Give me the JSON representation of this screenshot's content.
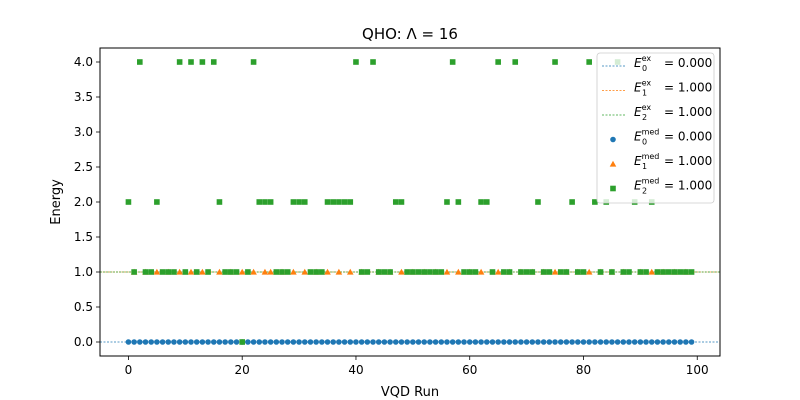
{
  "chart_data": {
    "type": "scatter",
    "title": "QHO: Λ = 16",
    "xlabel": "VQD Run",
    "ylabel": "Energy",
    "xlim": [
      -5,
      104
    ],
    "ylim": [
      -0.2,
      4.2
    ],
    "x_ticks": [
      0,
      20,
      40,
      60,
      80,
      100
    ],
    "y_ticks": [
      0.0,
      0.5,
      1.0,
      1.5,
      2.0,
      2.5,
      3.0,
      3.5,
      4.0
    ],
    "x_tick_labels": [
      "0",
      "20",
      "40",
      "60",
      "80",
      "100"
    ],
    "y_tick_labels": [
      "0.0",
      "0.5",
      "1.0",
      "1.5",
      "2.0",
      "2.5",
      "3.0",
      "3.5",
      "4.0"
    ],
    "legend_position": "upper-right",
    "reference_lines": [
      {
        "label_base": "E",
        "sub": "0",
        "sup": "ex",
        "value_text": "= 0.000",
        "y": 0.0,
        "color": "#1f77b4"
      },
      {
        "label_base": "E",
        "sub": "1",
        "sup": "ex",
        "value_text": "= 1.000",
        "y": 1.0,
        "color": "#ff7f0e"
      },
      {
        "label_base": "E",
        "sub": "2",
        "sup": "ex",
        "value_text": "= 1.000",
        "y": 1.0,
        "color": "#2ca02c"
      }
    ],
    "series": [
      {
        "label_base": "E",
        "sub": "0",
        "sup": "med",
        "value_text": "= 0.000",
        "marker": "circle",
        "color": "#1f77b4",
        "points": [
          [
            0,
            0
          ],
          [
            1,
            0
          ],
          [
            2,
            0
          ],
          [
            3,
            0
          ],
          [
            4,
            0
          ],
          [
            5,
            0
          ],
          [
            6,
            0
          ],
          [
            7,
            0
          ],
          [
            8,
            0
          ],
          [
            9,
            0
          ],
          [
            10,
            0
          ],
          [
            11,
            0
          ],
          [
            12,
            0
          ],
          [
            13,
            0
          ],
          [
            14,
            0
          ],
          [
            15,
            0
          ],
          [
            16,
            0
          ],
          [
            17,
            0
          ],
          [
            18,
            0
          ],
          [
            19,
            0
          ],
          [
            20,
            0
          ],
          [
            21,
            0
          ],
          [
            22,
            0
          ],
          [
            23,
            0
          ],
          [
            24,
            0
          ],
          [
            25,
            0
          ],
          [
            26,
            0
          ],
          [
            27,
            0
          ],
          [
            28,
            0
          ],
          [
            29,
            0
          ],
          [
            30,
            0
          ],
          [
            31,
            0
          ],
          [
            32,
            0
          ],
          [
            33,
            0
          ],
          [
            34,
            0
          ],
          [
            35,
            0
          ],
          [
            36,
            0
          ],
          [
            37,
            0
          ],
          [
            38,
            0
          ],
          [
            39,
            0
          ],
          [
            40,
            0
          ],
          [
            41,
            0
          ],
          [
            42,
            0
          ],
          [
            43,
            0
          ],
          [
            44,
            0
          ],
          [
            45,
            0
          ],
          [
            46,
            0
          ],
          [
            47,
            0
          ],
          [
            48,
            0
          ],
          [
            49,
            0
          ],
          [
            50,
            0
          ],
          [
            51,
            0
          ],
          [
            52,
            0
          ],
          [
            53,
            0
          ],
          [
            54,
            0
          ],
          [
            55,
            0
          ],
          [
            56,
            0
          ],
          [
            57,
            0
          ],
          [
            58,
            0
          ],
          [
            59,
            0
          ],
          [
            60,
            0
          ],
          [
            61,
            0
          ],
          [
            62,
            0
          ],
          [
            63,
            0
          ],
          [
            64,
            0
          ],
          [
            65,
            0
          ],
          [
            66,
            0
          ],
          [
            67,
            0
          ],
          [
            68,
            0
          ],
          [
            69,
            0
          ],
          [
            70,
            0
          ],
          [
            71,
            0
          ],
          [
            72,
            0
          ],
          [
            73,
            0
          ],
          [
            74,
            0
          ],
          [
            75,
            0
          ],
          [
            76,
            0
          ],
          [
            77,
            0
          ],
          [
            78,
            0
          ],
          [
            79,
            0
          ],
          [
            80,
            0
          ],
          [
            81,
            0
          ],
          [
            82,
            0
          ],
          [
            83,
            0
          ],
          [
            84,
            0
          ],
          [
            85,
            0
          ],
          [
            86,
            0
          ],
          [
            87,
            0
          ],
          [
            88,
            0
          ],
          [
            89,
            0
          ],
          [
            90,
            0
          ],
          [
            91,
            0
          ],
          [
            92,
            0
          ],
          [
            93,
            0
          ],
          [
            94,
            0
          ],
          [
            95,
            0
          ],
          [
            96,
            0
          ],
          [
            97,
            0
          ],
          [
            98,
            0
          ],
          [
            99,
            0
          ]
        ]
      },
      {
        "label_base": "E",
        "sub": "1",
        "sup": "med",
        "value_text": "= 1.000",
        "marker": "triangle",
        "color": "#ff7f0e",
        "points": [
          [
            1,
            1
          ],
          [
            3,
            1
          ],
          [
            5,
            1
          ],
          [
            7,
            1
          ],
          [
            9,
            1
          ],
          [
            11,
            1
          ],
          [
            13,
            1
          ],
          [
            16,
            1
          ],
          [
            18,
            1
          ],
          [
            20,
            1
          ],
          [
            22,
            1
          ],
          [
            24,
            1
          ],
          [
            25,
            1
          ],
          [
            27,
            1
          ],
          [
            29,
            1
          ],
          [
            31,
            1
          ],
          [
            33,
            1
          ],
          [
            35,
            1
          ],
          [
            37,
            1
          ],
          [
            39,
            1
          ],
          [
            41,
            1
          ],
          [
            44,
            1
          ],
          [
            46,
            1
          ],
          [
            48,
            1
          ],
          [
            50,
            1
          ],
          [
            52,
            1
          ],
          [
            54,
            1
          ],
          [
            56,
            1
          ],
          [
            58,
            1
          ],
          [
            60,
            1
          ],
          [
            62,
            1
          ],
          [
            65,
            1
          ],
          [
            67,
            1
          ],
          [
            69,
            1
          ],
          [
            71,
            1
          ],
          [
            73,
            1
          ],
          [
            75,
            1
          ],
          [
            77,
            1
          ],
          [
            79,
            1
          ],
          [
            81,
            1
          ],
          [
            83,
            1
          ],
          [
            85,
            1
          ],
          [
            87,
            1
          ],
          [
            90,
            1
          ],
          [
            92,
            1
          ],
          [
            94,
            1
          ],
          [
            96,
            1
          ],
          [
            98,
            1
          ]
        ]
      },
      {
        "label_base": "E",
        "sub": "2",
        "sup": "med",
        "value_text": "= 1.000",
        "marker": "square",
        "color": "#2ca02c",
        "points": [
          [
            0,
            2
          ],
          [
            1,
            1
          ],
          [
            2,
            4
          ],
          [
            3,
            1
          ],
          [
            4,
            1
          ],
          [
            5,
            2
          ],
          [
            6,
            1
          ],
          [
            7,
            1
          ],
          [
            8,
            1
          ],
          [
            9,
            4
          ],
          [
            10,
            1
          ],
          [
            11,
            4
          ],
          [
            12,
            1
          ],
          [
            13,
            4
          ],
          [
            14,
            1
          ],
          [
            15,
            4
          ],
          [
            16,
            2
          ],
          [
            17,
            1
          ],
          [
            18,
            1
          ],
          [
            19,
            1
          ],
          [
            20,
            0
          ],
          [
            21,
            1
          ],
          [
            22,
            4
          ],
          [
            23,
            2
          ],
          [
            24,
            2
          ],
          [
            25,
            2
          ],
          [
            26,
            1
          ],
          [
            27,
            1
          ],
          [
            28,
            1
          ],
          [
            29,
            2
          ],
          [
            30,
            2
          ],
          [
            31,
            2
          ],
          [
            32,
            1
          ],
          [
            33,
            1
          ],
          [
            34,
            1
          ],
          [
            35,
            2
          ],
          [
            36,
            2
          ],
          [
            37,
            2
          ],
          [
            38,
            2
          ],
          [
            39,
            2
          ],
          [
            40,
            4
          ],
          [
            41,
            1
          ],
          [
            42,
            1
          ],
          [
            43,
            4
          ],
          [
            44,
            1
          ],
          [
            45,
            1
          ],
          [
            46,
            1
          ],
          [
            47,
            2
          ],
          [
            48,
            2
          ],
          [
            49,
            1
          ],
          [
            50,
            1
          ],
          [
            51,
            1
          ],
          [
            52,
            1
          ],
          [
            53,
            1
          ],
          [
            54,
            1
          ],
          [
            55,
            1
          ],
          [
            56,
            2
          ],
          [
            57,
            4
          ],
          [
            58,
            2
          ],
          [
            59,
            1
          ],
          [
            60,
            1
          ],
          [
            61,
            1
          ],
          [
            62,
            2
          ],
          [
            63,
            2
          ],
          [
            64,
            1
          ],
          [
            65,
            4
          ],
          [
            66,
            1
          ],
          [
            67,
            1
          ],
          [
            68,
            4
          ],
          [
            69,
            1
          ],
          [
            70,
            1
          ],
          [
            71,
            1
          ],
          [
            72,
            2
          ],
          [
            73,
            1
          ],
          [
            74,
            1
          ],
          [
            75,
            4
          ],
          [
            76,
            1
          ],
          [
            77,
            1
          ],
          [
            78,
            2
          ],
          [
            79,
            1
          ],
          [
            80,
            1
          ],
          [
            81,
            4
          ],
          [
            82,
            2
          ],
          [
            83,
            1
          ],
          [
            84,
            2
          ],
          [
            85,
            1
          ],
          [
            86,
            4
          ],
          [
            87,
            1
          ],
          [
            88,
            1
          ],
          [
            89,
            2
          ],
          [
            90,
            1
          ],
          [
            91,
            1
          ],
          [
            92,
            2
          ],
          [
            93,
            1
          ],
          [
            94,
            1
          ],
          [
            95,
            1
          ],
          [
            96,
            1
          ],
          [
            97,
            1
          ],
          [
            98,
            1
          ],
          [
            99,
            1
          ]
        ]
      }
    ]
  }
}
